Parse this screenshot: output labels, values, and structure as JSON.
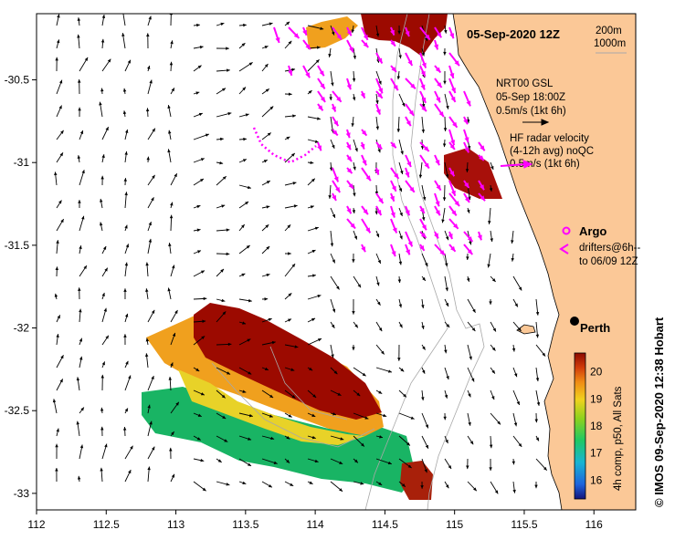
{
  "title": "05-Sep-2020 12Z",
  "contours": {
    "depth1": "200m",
    "depth2": "1000m"
  },
  "model_legend": {
    "line1": "NRT00 GSL",
    "line2": "05-Sep 18:00Z",
    "line3": "0.5m/s (1kt 6h)"
  },
  "radar_legend": {
    "line1": "HF radar velocity",
    "line2": "(4-12h avg) noQC",
    "line3": "0.5m/s (1kt 6h)"
  },
  "argo_label": "Argo",
  "drifters_legend": {
    "line1": "drifters@6h--",
    "line2": "to 06/09 12Z"
  },
  "city_label": "Perth",
  "colorbar": {
    "ticks": [
      "20",
      "19",
      "18",
      "17",
      "16"
    ],
    "range": [
      15.3,
      20.7
    ],
    "label": "4h comp, p50, All Sats"
  },
  "credit": "© IMOS 09-Sep-2020 12:38 Hobart",
  "x_axis": {
    "ticks": [
      "112",
      "112.5",
      "113",
      "113.5",
      "114",
      "114.5",
      "115",
      "115.5",
      "116"
    ],
    "range": [
      112,
      116.3
    ]
  },
  "y_axis": {
    "ticks": [
      "-30.5",
      "-31",
      "-31.5",
      "-32",
      "-32.5",
      "-33"
    ],
    "range": [
      -33.1,
      -30.1
    ]
  },
  "colors": {
    "land": "#fbc897",
    "radar_arrows": "#ff00ff",
    "model_arrows": "#000000",
    "contour": "#a8a8a8",
    "sst_warm": "#9c0a00",
    "sst_cool": "#19b464"
  }
}
